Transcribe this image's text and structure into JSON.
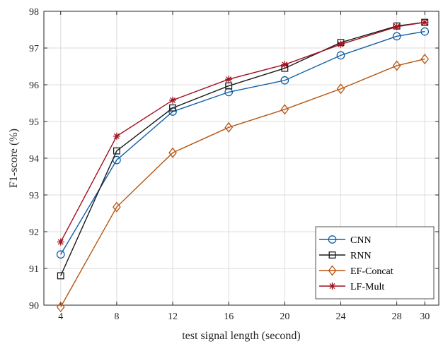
{
  "chart_data": {
    "type": "line",
    "title": "",
    "xlabel": "test signal length (second)",
    "ylabel": "F1-score (%)",
    "x": [
      4,
      8,
      12,
      16,
      20,
      24,
      28,
      30
    ],
    "x_ticks": [
      "4",
      "8",
      "12",
      "16",
      "20",
      "24",
      "28",
      "30"
    ],
    "xlim": [
      2.8,
      31.0
    ],
    "ylim": [
      90,
      98
    ],
    "y_ticks": [
      "90",
      "91",
      "92",
      "93",
      "94",
      "95",
      "96",
      "97",
      "98"
    ],
    "grid": true,
    "legend_position": "bottom-right",
    "series": [
      {
        "name": "CNN",
        "color": "#0f5fa8",
        "marker": "circle",
        "values": [
          91.38,
          93.95,
          95.27,
          95.8,
          96.12,
          96.8,
          97.32,
          97.45
        ]
      },
      {
        "name": "RNN",
        "color": "#1a1a1a",
        "marker": "square",
        "values": [
          90.8,
          94.2,
          95.37,
          95.97,
          96.45,
          97.15,
          97.6,
          97.7
        ]
      },
      {
        "name": "EF-Concat",
        "color": "#b8540f",
        "marker": "diamond",
        "values": [
          89.95,
          92.67,
          94.15,
          94.84,
          95.33,
          95.89,
          96.52,
          96.7
        ]
      },
      {
        "name": "LF-Mult",
        "color": "#a0101e",
        "marker": "star",
        "values": [
          91.72,
          94.6,
          95.58,
          96.15,
          96.55,
          97.1,
          97.58,
          97.7
        ]
      }
    ]
  }
}
